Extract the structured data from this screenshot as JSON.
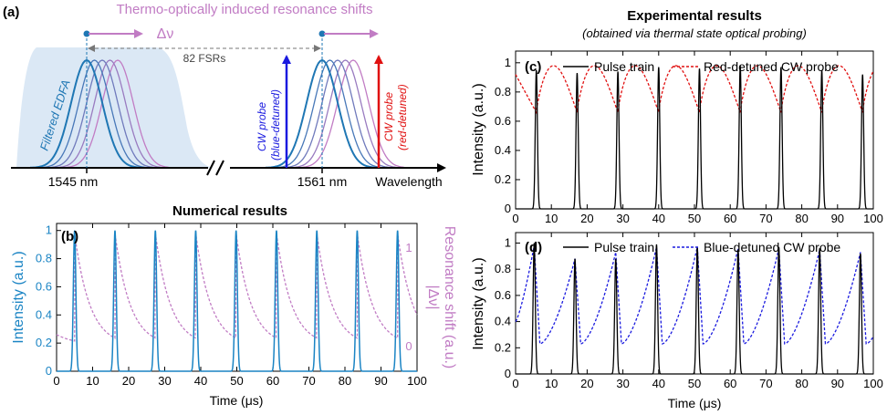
{
  "panel_a": {
    "label": "(a)",
    "title": "Thermo-optically induced resonance shifts",
    "delta_nu": "Δν",
    "fsr_label": "82 FSRs",
    "edfa_label": "Filtered EDFA",
    "cw_blue_line1": "CW probe",
    "cw_blue_line2": "(blue-detuned)",
    "cw_red_line1": "CW probe",
    "cw_red_line2": "(red-detuned)",
    "tick_1545": "1545 nm",
    "tick_1561": "1561 nm",
    "axis_label": "Wavelength",
    "colors": {
      "resonance": "#1f77b4",
      "shift": "#c17cc4",
      "edfa_fill": "#dbe8f5",
      "blue_probe": "#1a1adf",
      "red_probe": "#e01010"
    }
  },
  "panel_b": {
    "label": "(b)",
    "title": "Numerical results",
    "xlabel": "Time (μs)",
    "ylabel_left": "Intensity (a.u.)",
    "ylabel_right": "Resonance shift (a.u.)",
    "ylabel_right_symbol": "|Δν|",
    "right_ticks": [
      "0",
      "1"
    ],
    "colors": {
      "pulse": "#1a84c4",
      "shift": "#c17cc4"
    }
  },
  "experimental": {
    "title": "Experimental results",
    "subtitle": "(obtained via thermal state optical probing)"
  },
  "panel_c": {
    "label": "(c)",
    "xlabel": "",
    "ylabel": "Intensity (a.u.)",
    "legend_pulse": "Pulse train",
    "legend_probe": "Red-detuned CW probe",
    "colors": {
      "pulse": "#000000",
      "probe": "#e01010"
    }
  },
  "panel_d": {
    "label": "(d)",
    "xlabel": "Time (μs)",
    "ylabel": "Intensity (a.u.)",
    "legend_pulse": "Pulse train",
    "legend_probe": "Blue-detuned CW probe",
    "colors": {
      "pulse": "#000000",
      "probe": "#1a1adf"
    }
  },
  "chart_data": [
    {
      "id": "b",
      "type": "line",
      "xlim": [
        0,
        100
      ],
      "ylim": [
        0,
        1.05
      ],
      "x_ticks": [
        0,
        10,
        20,
        30,
        40,
        50,
        60,
        70,
        80,
        90,
        100
      ],
      "y_ticks": [
        0,
        0.2,
        0.4,
        0.6,
        0.8,
        1
      ],
      "series": [
        {
          "name": "Intensity",
          "kind": "pulses",
          "pulse_times": [
            5,
            16.2,
            27.4,
            38.6,
            49.8,
            61,
            72.2,
            83.4,
            94.6
          ],
          "peaks": [
            1,
            1,
            1,
            1,
            1,
            1,
            1,
            1,
            1
          ]
        },
        {
          "name": "|Δν|",
          "kind": "decay",
          "start_times": [
            5,
            16.2,
            27.4,
            38.6,
            49.8,
            61,
            72.2,
            83.4,
            94.6
          ],
          "peak_value": 0.98,
          "floor_value": 0.18
        }
      ]
    },
    {
      "id": "c",
      "type": "line",
      "xlim": [
        0,
        100
      ],
      "ylim": [
        0,
        1.08
      ],
      "x_ticks": [
        0,
        10,
        20,
        30,
        40,
        50,
        60,
        70,
        80,
        90,
        100
      ],
      "y_ticks": [
        0,
        0.2,
        0.4,
        0.6,
        0.8,
        1
      ],
      "series": [
        {
          "name": "Pulse train",
          "kind": "pulses",
          "pulse_times": [
            5.8,
            17.2,
            28.6,
            40,
            51.4,
            62.8,
            74.2,
            85.6,
            97
          ],
          "peaks": [
            0.95,
            0.93,
            0.94,
            0.97,
            0.96,
            0.98,
            0.97,
            0.95,
            0.92
          ]
        },
        {
          "name": "Red-detuned CW probe",
          "kind": "arch",
          "pulse_times": [
            5.8,
            17.2,
            28.6,
            40,
            51.4,
            62.8,
            74.2,
            85.6,
            97
          ],
          "low": 0.66,
          "high": 0.98,
          "start_value": 0.92
        }
      ]
    },
    {
      "id": "d",
      "type": "line",
      "xlim": [
        0,
        100
      ],
      "ylim": [
        0,
        1.08
      ],
      "x_ticks": [
        0,
        10,
        20,
        30,
        40,
        50,
        60,
        70,
        80,
        90,
        100
      ],
      "y_ticks": [
        0,
        0.2,
        0.4,
        0.6,
        0.8,
        1
      ],
      "series": [
        {
          "name": "Pulse train",
          "kind": "pulses",
          "pulse_times": [
            5.2,
            16.6,
            28,
            39.4,
            50.8,
            62.2,
            73.6,
            85,
            96.4
          ],
          "peaks": [
            1,
            0.88,
            0.88,
            0.99,
            0.97,
            0.95,
            0.97,
            0.96,
            0.92
          ]
        },
        {
          "name": "Blue-detuned CW probe",
          "kind": "ramp",
          "pulse_times": [
            5.2,
            16.6,
            28,
            39.4,
            50.8,
            62.2,
            73.6,
            85,
            96.4
          ],
          "low": 0.23,
          "highs": [
            0.98,
            0.88,
            0.93,
            0.97,
            0.97,
            0.96,
            0.96,
            0.95,
            0.93
          ],
          "start_value": 0.4
        }
      ]
    }
  ]
}
